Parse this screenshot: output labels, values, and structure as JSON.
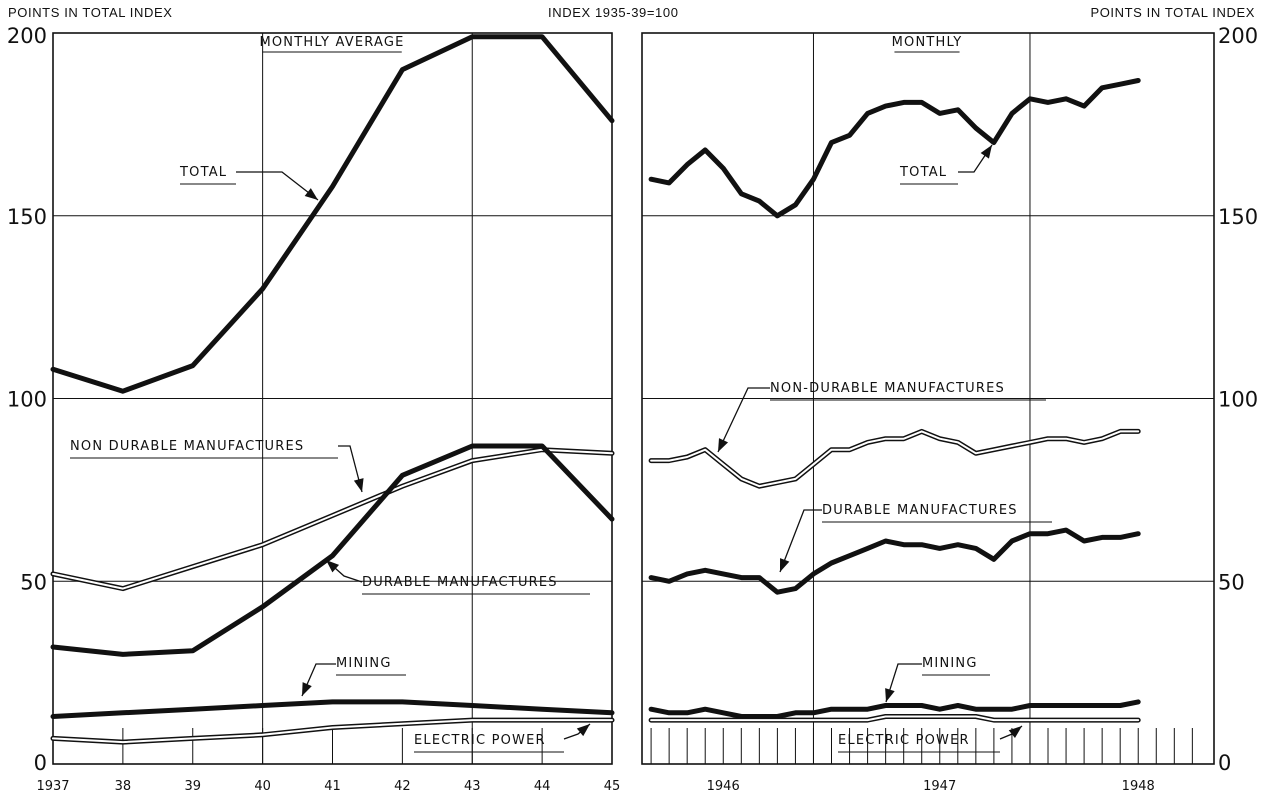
{
  "header": {
    "left_units": "POINTS IN TOTAL INDEX",
    "center_index": "INDEX 1935-39=100",
    "right_units": "POINTS IN TOTAL INDEX"
  },
  "chart_data": [
    {
      "type": "line",
      "title": "MONTHLY AVERAGE",
      "ylabel": "POINTS IN TOTAL INDEX",
      "ylim": [
        0,
        200
      ],
      "yticks": [
        "0",
        "50",
        "100",
        "150",
        "200"
      ],
      "x_tick_labels": [
        "1937",
        "38",
        "39",
        "40",
        "41",
        "42",
        "43",
        "44",
        "45"
      ],
      "x": [
        1937,
        1938,
        1939,
        1940,
        1941,
        1942,
        1943,
        1944,
        1945
      ],
      "series": [
        {
          "name": "TOTAL",
          "style": "thick",
          "values": [
            108,
            102,
            109,
            130,
            158,
            190,
            199,
            199,
            176
          ]
        },
        {
          "name": "NON DURABLE MANUFACTURES",
          "style": "double",
          "values": [
            52,
            48,
            54,
            60,
            68,
            76,
            83,
            86,
            85
          ]
        },
        {
          "name": "DURABLE MANUFACTURES",
          "style": "thick",
          "values": [
            32,
            30,
            31,
            43,
            57,
            79,
            87,
            87,
            67
          ]
        },
        {
          "name": "MINING",
          "style": "thick",
          "values": [
            13,
            14,
            15,
            16,
            17,
            17,
            16,
            15,
            14
          ]
        },
        {
          "name": "ELECTRIC POWER",
          "style": "double",
          "values": [
            7,
            6,
            7,
            8,
            10,
            11,
            12,
            12,
            12
          ]
        }
      ]
    },
    {
      "type": "line",
      "title": "MONTHLY",
      "ylabel": "POINTS IN TOTAL INDEX",
      "ylim": [
        0,
        200
      ],
      "yticks": [
        "0",
        "50",
        "100",
        "150",
        "200"
      ],
      "x_tick_labels": [
        "1946",
        "1947",
        "1948"
      ],
      "x": [
        1945.75,
        1945.833,
        1945.917,
        1946.0,
        1946.083,
        1946.167,
        1946.25,
        1946.333,
        1946.417,
        1946.5,
        1946.583,
        1946.667,
        1946.75,
        1946.833,
        1946.917,
        1947.0,
        1947.083,
        1947.167,
        1947.25,
        1947.333,
        1947.417,
        1947.5,
        1947.583,
        1947.667,
        1947.75,
        1947.833,
        1947.917,
        1948.0
      ],
      "series": [
        {
          "name": "TOTAL",
          "style": "thick",
          "values": [
            160,
            159,
            164,
            168,
            163,
            156,
            154,
            150,
            153,
            160,
            170,
            172,
            178,
            180,
            181,
            181,
            178,
            179,
            174,
            170,
            178,
            182,
            181,
            182,
            180,
            185,
            186,
            187
          ]
        },
        {
          "name": "NON-DURABLE MANUFACTURES",
          "style": "double",
          "values": [
            83,
            83,
            84,
            86,
            82,
            78,
            76,
            77,
            78,
            82,
            86,
            86,
            88,
            89,
            89,
            91,
            89,
            88,
            85,
            86,
            87,
            88,
            89,
            89,
            88,
            89,
            91,
            91
          ]
        },
        {
          "name": "DURABLE MANUFACTURES",
          "style": "thick",
          "values": [
            51,
            50,
            52,
            53,
            52,
            51,
            51,
            47,
            48,
            52,
            55,
            57,
            59,
            61,
            60,
            60,
            59,
            60,
            59,
            56,
            61,
            63,
            63,
            64,
            61,
            62,
            62,
            63
          ]
        },
        {
          "name": "MINING",
          "style": "thick",
          "values": [
            15,
            14,
            14,
            15,
            14,
            13,
            13,
            13,
            14,
            14,
            15,
            15,
            15,
            16,
            16,
            16,
            15,
            16,
            15,
            15,
            15,
            16,
            16,
            16,
            16,
            16,
            16,
            17
          ]
        },
        {
          "name": "ELECTRIC POWER",
          "style": "double",
          "values": [
            12,
            12,
            12,
            12,
            12,
            12,
            12,
            12,
            12,
            12,
            12,
            12,
            12,
            13,
            13,
            13,
            13,
            13,
            13,
            12,
            12,
            12,
            12,
            12,
            12,
            12,
            12,
            12
          ]
        }
      ]
    }
  ]
}
